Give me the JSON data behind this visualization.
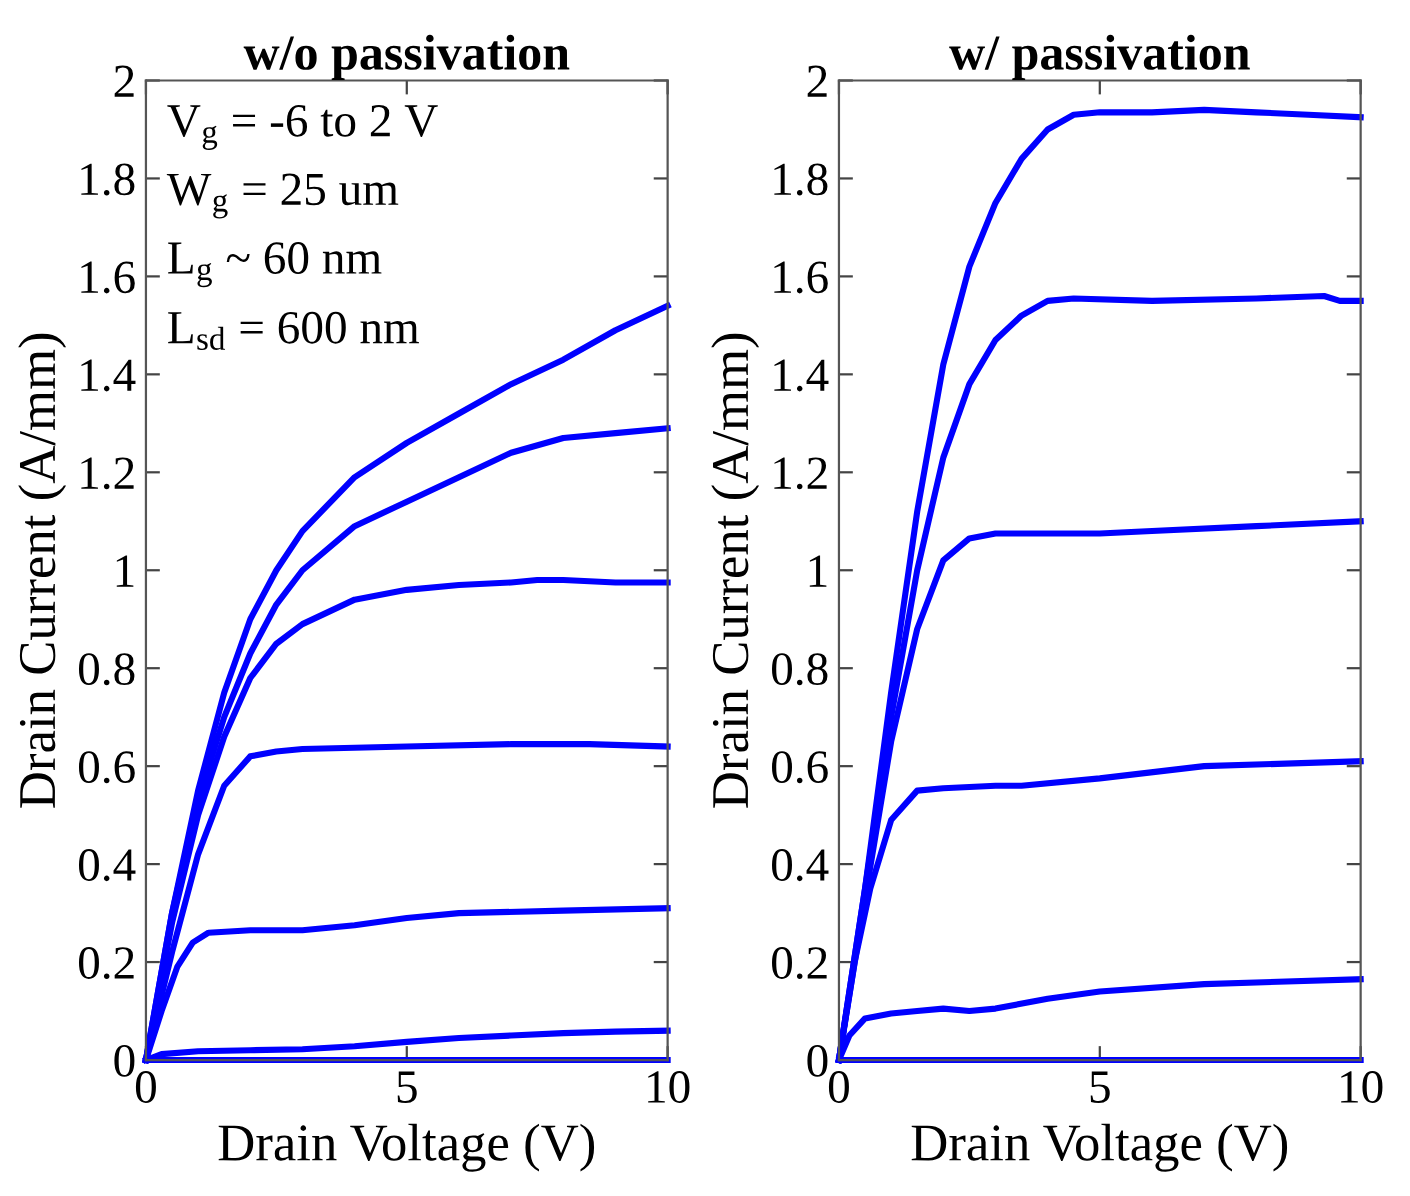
{
  "chart_data": [
    {
      "type": "line",
      "title": "w/o passivation",
      "xlabel": "Drain Voltage (V)",
      "ylabel": "Drain Current (A/mm)",
      "xlim": [
        0,
        10
      ],
      "ylim": [
        0,
        2
      ],
      "xticks": [
        0,
        5,
        10
      ],
      "yticks": [
        0,
        0.2,
        0.4,
        0.6,
        0.8,
        1,
        1.2,
        1.4,
        1.6,
        1.8,
        2
      ],
      "grid": false,
      "annotations": [
        "V$_{g}$ = -6 to 2 V",
        "W$_{g}$ = 25 um",
        "L$_{g}$ ~ 60 nm",
        "L$_{sd}$ = 600 nm"
      ],
      "series": [
        {
          "color": "#0000ff",
          "x": [
            0,
            0.5,
            1,
            1.5,
            2,
            2.5,
            3,
            4,
            5,
            6,
            7,
            8,
            9,
            10
          ],
          "values": [
            0,
            0.3,
            0.55,
            0.75,
            0.9,
            1.0,
            1.08,
            1.19,
            1.26,
            1.32,
            1.38,
            1.43,
            1.49,
            1.54
          ]
        },
        {
          "color": "#0000ff",
          "x": [
            0,
            0.5,
            1,
            1.5,
            2,
            2.5,
            3,
            4,
            5,
            6,
            7,
            8,
            9,
            10
          ],
          "values": [
            0,
            0.3,
            0.53,
            0.7,
            0.83,
            0.93,
            1.0,
            1.09,
            1.14,
            1.19,
            1.24,
            1.27,
            1.28,
            1.29
          ]
        },
        {
          "color": "#0000ff",
          "x": [
            0,
            0.5,
            1,
            1.5,
            2,
            2.5,
            3,
            4,
            5,
            6,
            7,
            7.5,
            8,
            9,
            10
          ],
          "values": [
            0,
            0.28,
            0.5,
            0.66,
            0.78,
            0.85,
            0.89,
            0.94,
            0.96,
            0.97,
            0.975,
            0.98,
            0.98,
            0.975,
            0.975
          ]
        },
        {
          "color": "#0000ff",
          "x": [
            0,
            0.5,
            1,
            1.5,
            2,
            2.5,
            3,
            5,
            7,
            8.5,
            10
          ],
          "values": [
            0,
            0.22,
            0.42,
            0.56,
            0.62,
            0.63,
            0.635,
            0.64,
            0.645,
            0.645,
            0.64
          ]
        },
        {
          "color": "#0000ff",
          "x": [
            0,
            0.3,
            0.6,
            0.9,
            1.2,
            2,
            3,
            4,
            5,
            6,
            8,
            10
          ],
          "values": [
            0,
            0.1,
            0.19,
            0.24,
            0.26,
            0.265,
            0.265,
            0.275,
            0.29,
            0.3,
            0.305,
            0.31
          ]
        },
        {
          "color": "#0000ff",
          "x": [
            0,
            0.3,
            1,
            2,
            3,
            4,
            5,
            6,
            7,
            8,
            9,
            10
          ],
          "values": [
            0,
            0.012,
            0.018,
            0.02,
            0.022,
            0.028,
            0.037,
            0.045,
            0.05,
            0.055,
            0.058,
            0.06
          ]
        },
        {
          "color": "#0000ff",
          "x": [
            0,
            10
          ],
          "values": [
            0,
            0
          ]
        }
      ]
    },
    {
      "type": "line",
      "title": "w/ passivation",
      "xlabel": "Drain Voltage (V)",
      "ylabel": "Drain Current (A/mm)",
      "xlim": [
        0,
        10
      ],
      "ylim": [
        0,
        2
      ],
      "xticks": [
        0,
        5,
        10
      ],
      "yticks": [
        0,
        0.2,
        0.4,
        0.6,
        0.8,
        1,
        1.2,
        1.4,
        1.6,
        1.8,
        2
      ],
      "grid": false,
      "series": [
        {
          "color": "#0000ff",
          "x": [
            0,
            0.5,
            1,
            1.5,
            2,
            2.5,
            3,
            3.5,
            4,
            4.5,
            5,
            6,
            7,
            8,
            9,
            10
          ],
          "values": [
            0,
            0.35,
            0.75,
            1.12,
            1.42,
            1.62,
            1.75,
            1.84,
            1.9,
            1.93,
            1.935,
            1.935,
            1.94,
            1.935,
            1.93,
            1.925
          ]
        },
        {
          "color": "#0000ff",
          "x": [
            0,
            0.5,
            1,
            1.5,
            2,
            2.5,
            3,
            3.5,
            4,
            4.5,
            6,
            8,
            9.3,
            9.6,
            10
          ],
          "values": [
            0,
            0.35,
            0.7,
            1.0,
            1.23,
            1.38,
            1.47,
            1.52,
            1.55,
            1.555,
            1.55,
            1.555,
            1.56,
            1.55,
            1.55
          ]
        },
        {
          "color": "#0000ff",
          "x": [
            0,
            0.5,
            1,
            1.5,
            2,
            2.5,
            3,
            4,
            5,
            6,
            8,
            10
          ],
          "values": [
            0,
            0.33,
            0.65,
            0.88,
            1.02,
            1.065,
            1.075,
            1.075,
            1.075,
            1.08,
            1.09,
            1.1
          ]
        },
        {
          "color": "#0000ff",
          "x": [
            0,
            0.3,
            0.6,
            1,
            1.5,
            2,
            3,
            3.5,
            5,
            7,
            10
          ],
          "values": [
            0,
            0.2,
            0.35,
            0.49,
            0.55,
            0.555,
            0.56,
            0.56,
            0.575,
            0.6,
            0.61
          ]
        },
        {
          "color": "#0000ff",
          "x": [
            0,
            0.2,
            0.5,
            1,
            1.5,
            2,
            2.5,
            3,
            4,
            5,
            7,
            10
          ],
          "values": [
            0,
            0.05,
            0.085,
            0.095,
            0.1,
            0.105,
            0.1,
            0.105,
            0.125,
            0.14,
            0.155,
            0.165
          ]
        },
        {
          "color": "#0000ff",
          "x": [
            0,
            10
          ],
          "values": [
            0,
            0
          ]
        }
      ]
    }
  ]
}
